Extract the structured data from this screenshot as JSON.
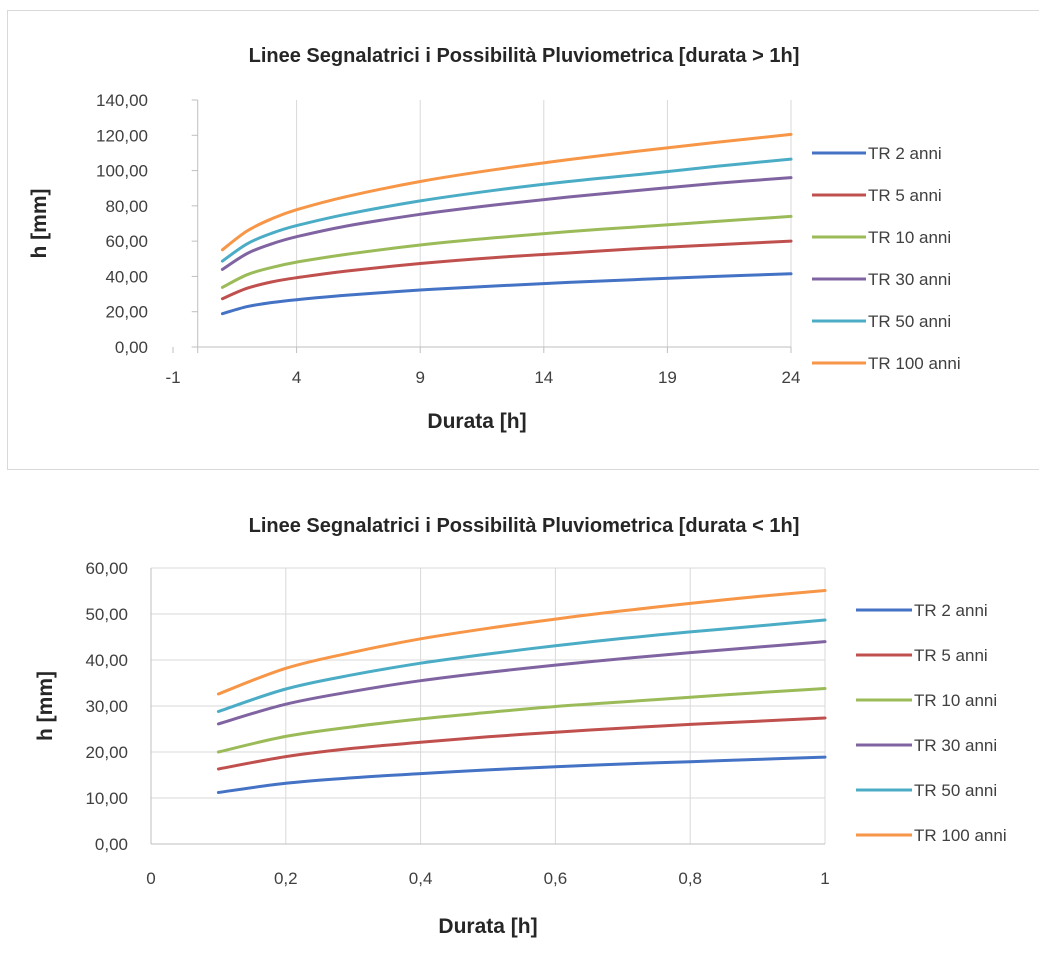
{
  "chart_data": [
    {
      "type": "line",
      "title": "Linee Segnalatrici i Possibilità Pluviometrica [durata > 1h]",
      "xlabel": "Durata [h]",
      "ylabel": "h [mm]",
      "xlim": [
        -1,
        24
      ],
      "ylim": [
        0,
        140
      ],
      "x_ticks": [
        -1,
        4,
        9,
        14,
        19,
        24
      ],
      "x_tick_labels": [
        "-1",
        "4",
        "9",
        "14",
        "19",
        "24"
      ],
      "y_ticks": [
        0,
        20,
        40,
        60,
        80,
        100,
        120,
        140
      ],
      "y_tick_labels": [
        "0,00",
        "20,00",
        "40,00",
        "60,00",
        "80,00",
        "100,00",
        "120,00",
        "140,00"
      ],
      "grid": "vertical",
      "legend": "right",
      "x": [
        1,
        2,
        3,
        4,
        6,
        9,
        12,
        15,
        18,
        21,
        24
      ],
      "series": [
        {
          "name": "TR 2 anni",
          "color": "#4472C4",
          "values": [
            18.9,
            22.9,
            25.2,
            26.8,
            29.3,
            32.3,
            34.6,
            36.6,
            38.4,
            40.0,
            41.5
          ]
        },
        {
          "name": "TR 5 anni",
          "color": "#C0504D",
          "values": [
            27.4,
            33.3,
            36.9,
            39.3,
            43.0,
            47.3,
            50.7,
            53.3,
            55.9,
            58.0,
            60.0
          ]
        },
        {
          "name": "TR 10 anni",
          "color": "#9BBB59",
          "values": [
            33.8,
            41.0,
            45.1,
            48.1,
            52.5,
            57.8,
            61.9,
            65.4,
            68.3,
            71.2,
            74.0
          ]
        },
        {
          "name": "TR 30 anni",
          "color": "#8064A2",
          "values": [
            44.0,
            53.0,
            58.5,
            62.5,
            68.5,
            75.2,
            80.5,
            85.0,
            89.0,
            92.8,
            96.0
          ]
        },
        {
          "name": "TR 50 anni",
          "color": "#4BACC6",
          "values": [
            48.7,
            58.5,
            64.5,
            68.8,
            75.2,
            82.8,
            88.8,
            93.8,
            98.0,
            102.4,
            106.5
          ]
        },
        {
          "name": "TR 100 anni",
          "color": "#F79646",
          "values": [
            55.1,
            65.8,
            72.7,
            77.8,
            85.2,
            93.8,
            100.5,
            106.2,
            111.3,
            116.0,
            120.5
          ]
        }
      ]
    },
    {
      "type": "line",
      "title": "Linee Segnalatrici i Possibilità Pluviometrica [durata < 1h]",
      "xlabel": "Durata [h]",
      "ylabel": "h [mm]",
      "xlim": [
        0,
        1
      ],
      "ylim": [
        0,
        60
      ],
      "x_ticks": [
        0,
        0.2,
        0.4,
        0.6,
        0.8,
        1
      ],
      "x_tick_labels": [
        "0",
        "0,2",
        "0,4",
        "0,6",
        "0,8",
        "1"
      ],
      "y_ticks": [
        0,
        10,
        20,
        30,
        40,
        50,
        60
      ],
      "y_tick_labels": [
        "0,00",
        "10,00",
        "20,00",
        "30,00",
        "40,00",
        "50,00",
        "60,00"
      ],
      "grid": "both",
      "legend": "right",
      "x": [
        0.1,
        0.2,
        0.3,
        0.4,
        0.5,
        0.6,
        0.7,
        0.8,
        0.9,
        1.0
      ],
      "series": [
        {
          "name": "TR 2 anni",
          "color": "#4472C4",
          "values": [
            11.2,
            13.2,
            14.4,
            15.3,
            16.1,
            16.8,
            17.4,
            17.9,
            18.4,
            18.9
          ]
        },
        {
          "name": "TR 5 anni",
          "color": "#C0504D",
          "values": [
            16.3,
            19.0,
            20.8,
            22.1,
            23.3,
            24.3,
            25.2,
            26.0,
            26.7,
            27.4
          ]
        },
        {
          "name": "TR 10 anni",
          "color": "#9BBB59",
          "values": [
            20.0,
            23.4,
            25.5,
            27.2,
            28.6,
            29.9,
            30.9,
            31.9,
            32.9,
            33.8
          ]
        },
        {
          "name": "TR 30 anni",
          "color": "#8064A2",
          "values": [
            26.1,
            30.4,
            33.2,
            35.5,
            37.3,
            38.9,
            40.3,
            41.6,
            42.8,
            44.0
          ]
        },
        {
          "name": "TR 50 anni",
          "color": "#4BACC6",
          "values": [
            28.8,
            33.7,
            36.8,
            39.3,
            41.3,
            43.1,
            44.7,
            46.1,
            47.4,
            48.7
          ]
        },
        {
          "name": "TR 100 anni",
          "color": "#F79646",
          "values": [
            32.6,
            38.2,
            41.7,
            44.6,
            46.9,
            48.9,
            50.7,
            52.3,
            53.8,
            55.1
          ]
        }
      ]
    }
  ]
}
